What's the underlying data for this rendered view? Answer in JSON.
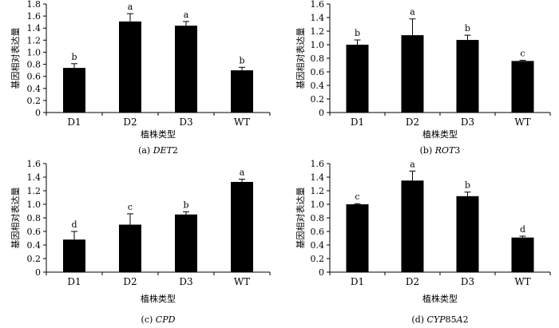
{
  "chart_data": [
    {
      "type": "bar",
      "categories": [
        "D1",
        "D2",
        "D3",
        "WT"
      ],
      "values": [
        0.74,
        1.51,
        1.44,
        0.7
      ],
      "errors": [
        0.07,
        0.13,
        0.07,
        0.05
      ],
      "significance": [
        "b",
        "a",
        "a",
        "b"
      ],
      "ylim": [
        0,
        1.8
      ],
      "yticks": [
        "0",
        "0.2",
        "0.4",
        "0.6",
        "0.8",
        "1.0",
        "1.2",
        "1.4",
        "1.6",
        "1.8"
      ],
      "xlabel": "植株类型",
      "ylabel": "基因相对表达量",
      "caption": {
        "prefix": "(a) ",
        "gene_italic": "DET",
        "gene_plain": "2"
      },
      "bar_color": "#000000"
    },
    {
      "type": "bar",
      "categories": [
        "D1",
        "D2",
        "D3",
        "WT"
      ],
      "values": [
        1.0,
        1.14,
        1.07,
        0.76
      ],
      "errors": [
        0.07,
        0.24,
        0.07,
        0.01
      ],
      "significance": [
        "b",
        "a",
        "b",
        "c"
      ],
      "ylim": [
        0,
        1.6
      ],
      "yticks": [
        "0",
        "0.2",
        "0.4",
        "0.6",
        "0.8",
        "1.0",
        "1.2",
        "1.4",
        "1.6"
      ],
      "xlabel": "植株类型",
      "ylabel": "基因相对表达量",
      "caption": {
        "prefix": "(b) ",
        "gene_italic": "ROT",
        "gene_plain": "3"
      },
      "bar_color": "#000000"
    },
    {
      "type": "bar",
      "categories": [
        "D1",
        "D2",
        "D3",
        "WT"
      ],
      "values": [
        0.48,
        0.7,
        0.85,
        1.33
      ],
      "errors": [
        0.12,
        0.16,
        0.04,
        0.04
      ],
      "significance": [
        "d",
        "c",
        "b",
        "a"
      ],
      "ylim": [
        0,
        1.6
      ],
      "yticks": [
        "0",
        "0.2",
        "0.4",
        "0.6",
        "0.8",
        "1.0",
        "1.2",
        "1.4",
        "1.6"
      ],
      "xlabel": "植株类型",
      "ylabel": "基因相对表达量",
      "caption": {
        "prefix": "(c) ",
        "gene_italic": "CPD",
        "gene_plain": ""
      },
      "bar_color": "#000000"
    },
    {
      "type": "bar",
      "categories": [
        "D1",
        "D2",
        "D3",
        "WT"
      ],
      "values": [
        1.0,
        1.35,
        1.12,
        0.51
      ],
      "errors": [
        0.01,
        0.14,
        0.06,
        0.02
      ],
      "significance": [
        "c",
        "a",
        "b",
        "d"
      ],
      "ylim": [
        0,
        1.6
      ],
      "yticks": [
        "0",
        "0.2",
        "0.4",
        "0.6",
        "0.8",
        "1.0",
        "1.2",
        "1.4",
        "1.6"
      ],
      "xlabel": "植株类型",
      "ylabel": "基因相对表达量",
      "caption": {
        "prefix": "(d) ",
        "gene_italic": "CYP",
        "gene_plain": "85",
        "gene_italic2": "A",
        "gene_plain2": "2"
      },
      "bar_color": "#000000"
    }
  ]
}
